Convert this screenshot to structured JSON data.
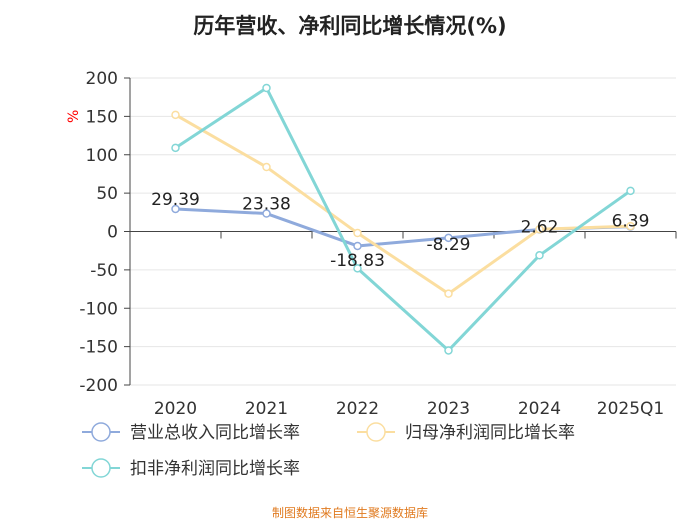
{
  "title": "历年营收、净利同比增长情况(%)",
  "footer": "制图数据来自恒生聚源数据库",
  "colors": {
    "footer": "#e07a1f",
    "grid": "#e6e6e6",
    "axis": "#444444",
    "unit": "#ff0000"
  },
  "chart_data": {
    "type": "line",
    "title": "历年营收、净利同比增长情况(%)",
    "ylabel": "%",
    "xlabel": "",
    "ylim": [
      -200,
      200
    ],
    "yticks": [
      200,
      150,
      100,
      50,
      0,
      -50,
      -100,
      -150,
      -200
    ],
    "categories": [
      "2020",
      "2021",
      "2022",
      "2023",
      "2024",
      "2025Q1"
    ],
    "series": [
      {
        "name": "营业总收入同比增长率",
        "color": "#8faadc",
        "values": [
          29.39,
          23.38,
          -18.83,
          -8.29,
          2.62,
          6.39
        ],
        "labels": [
          "29.39",
          "23.38",
          "-18.83",
          "-8.29",
          "2.62",
          "6.39"
        ]
      },
      {
        "name": "归母净利润同比增长率",
        "color": "#fbdea0",
        "values": [
          152,
          84,
          -2,
          -81,
          3,
          7
        ]
      },
      {
        "name": "扣非净利润同比增长率",
        "color": "#82d6d6",
        "values": [
          109,
          187,
          -48,
          -155,
          -31,
          53
        ]
      }
    ],
    "legend": "bottom"
  }
}
